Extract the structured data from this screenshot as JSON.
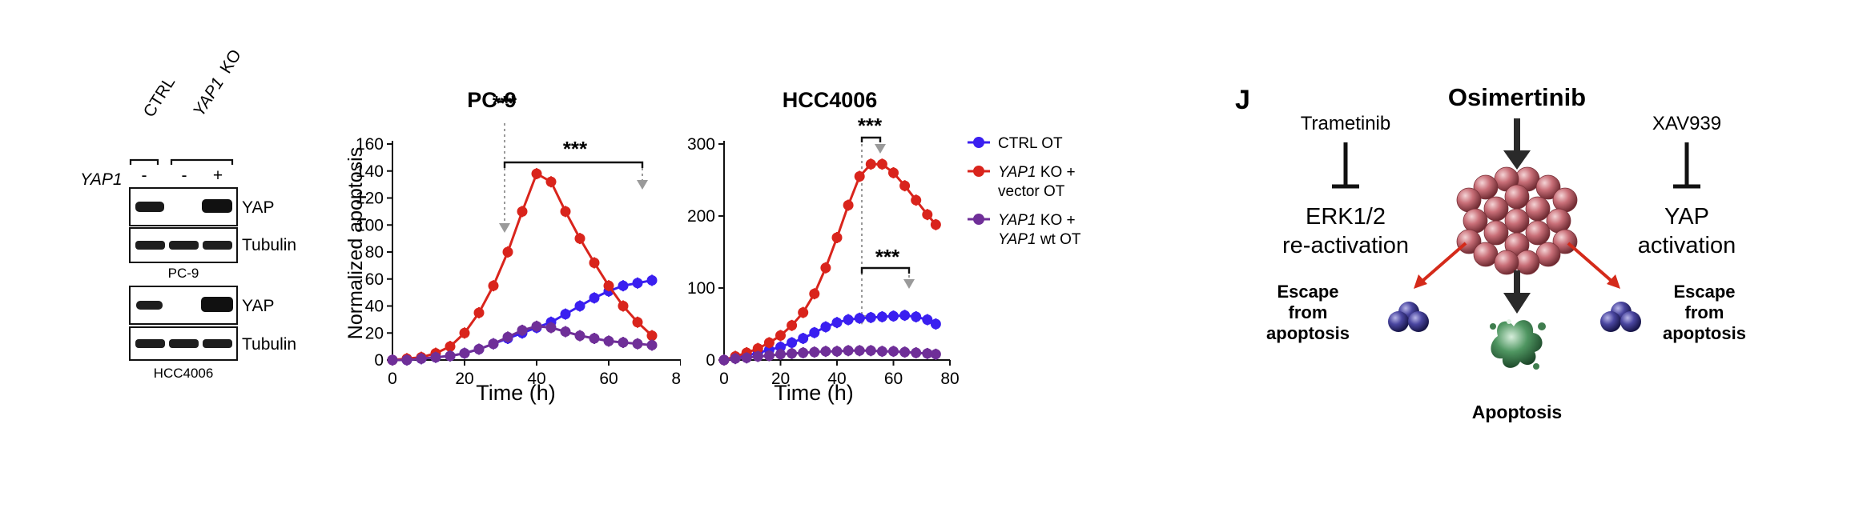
{
  "colors": {
    "ctrl": "#3a1ff0",
    "ko_vector": "#d9241c",
    "ko_wt": "#6f2f98",
    "arrow_red": "#d42a1a",
    "cell_fill": "#c96f78",
    "escape_cell": "#3e3b86",
    "apoptotic_cell": "#3f7d4e",
    "bracket_gray": "#9a9a9a"
  },
  "western_blot": {
    "column_headers": [
      "CTRL",
      "KO"
    ],
    "column_header_italic_prefix": "YAP1",
    "row_label": "YAP1",
    "lane_signs": [
      "-",
      "-",
      "+"
    ],
    "panels": [
      {
        "cell_line": "PC-9",
        "bands": [
          {
            "label": "YAP",
            "lane_intensity": [
              0.9,
              0.0,
              1.0
            ]
          },
          {
            "label": "Tubulin",
            "lane_intensity": [
              0.95,
              0.95,
              0.95
            ]
          }
        ]
      },
      {
        "cell_line": "HCC4006",
        "bands": [
          {
            "label": "YAP",
            "lane_intensity": [
              0.85,
              0.0,
              1.0
            ]
          },
          {
            "label": "Tubulin",
            "lane_intensity": [
              0.95,
              0.95,
              0.95
            ]
          }
        ]
      }
    ]
  },
  "chart_data": [
    {
      "type": "line",
      "title": "PC-9",
      "xlabel": "Time (h)",
      "ylabel": "Normalized apoptosis",
      "xlim": [
        0,
        80
      ],
      "ylim": [
        0,
        160
      ],
      "xticks": [
        0,
        20,
        40,
        60,
        80
      ],
      "yticks": [
        0,
        20,
        40,
        60,
        80,
        100,
        120,
        140,
        160
      ],
      "x": [
        0,
        4,
        8,
        12,
        16,
        20,
        24,
        28,
        32,
        36,
        40,
        44,
        48,
        52,
        56,
        60,
        64,
        68,
        72
      ],
      "series": [
        {
          "name": "CTRL OT",
          "color": "ctrl",
          "values": [
            0,
            0,
            1,
            2,
            3,
            5,
            8,
            12,
            16,
            20,
            24,
            28,
            34,
            40,
            46,
            51,
            55,
            57,
            59
          ]
        },
        {
          "name": "YAP1 KO + vector OT",
          "color": "ko_vector",
          "values": [
            0,
            1,
            2,
            5,
            10,
            20,
            35,
            55,
            80,
            110,
            138,
            132,
            110,
            90,
            72,
            55,
            40,
            28,
            18
          ]
        },
        {
          "name": "YAP1 KO + YAP1 wt OT",
          "color": "ko_wt",
          "values": [
            0,
            0,
            1,
            2,
            3,
            5,
            8,
            12,
            17,
            22,
            25,
            24,
            21,
            18,
            16,
            14,
            13,
            12,
            11
          ]
        }
      ],
      "annotations": [
        "***",
        "***"
      ]
    },
    {
      "type": "line",
      "title": "HCC4006",
      "xlabel": "Time (h)",
      "ylabel": "",
      "xlim": [
        0,
        80
      ],
      "ylim": [
        0,
        300
      ],
      "xticks": [
        0,
        20,
        40,
        60,
        80
      ],
      "yticks": [
        0,
        100,
        200,
        300
      ],
      "x": [
        0,
        4,
        8,
        12,
        16,
        20,
        24,
        28,
        32,
        36,
        40,
        44,
        48,
        52,
        56,
        60,
        64,
        68,
        72,
        75
      ],
      "series": [
        {
          "name": "CTRL OT",
          "color": "ctrl",
          "values": [
            0,
            3,
            6,
            10,
            14,
            18,
            24,
            30,
            38,
            46,
            52,
            56,
            58,
            59,
            60,
            61,
            62,
            60,
            56,
            50
          ]
        },
        {
          "name": "YAP1 KO + vector OT",
          "color": "ko_vector",
          "values": [
            0,
            5,
            10,
            16,
            24,
            34,
            48,
            66,
            92,
            128,
            170,
            215,
            255,
            272,
            272,
            260,
            242,
            222,
            202,
            188
          ]
        },
        {
          "name": "YAP1 KO + YAP1 wt OT",
          "color": "ko_wt",
          "values": [
            0,
            2,
            3,
            5,
            6,
            8,
            9,
            10,
            11,
            12,
            12,
            13,
            13,
            13,
            12,
            12,
            11,
            10,
            9,
            8
          ]
        }
      ],
      "annotations": [
        "***",
        "***"
      ]
    }
  ],
  "legend": {
    "entries": [
      {
        "series": "CTRL OT",
        "color": "ctrl",
        "lines": [
          "CTRL OT"
        ]
      },
      {
        "series": "YAP1 KO + vector OT",
        "color": "ko_vector",
        "lines": [
          "YAP1 KO +",
          "vector OT"
        ]
      },
      {
        "series": "YAP1 KO + YAP1 wt OT",
        "color": "ko_wt",
        "lines": [
          "YAP1 KO +",
          "YAP1 wt OT"
        ]
      }
    ]
  },
  "schematic": {
    "panel_letter": "J",
    "center_drug": "Osimertinib",
    "left_inhibitor": "Trametinib",
    "left_target_lines": [
      "ERK1/2",
      "re-activation"
    ],
    "right_inhibitor": "XAV939",
    "right_target_lines": [
      "YAP",
      "activation"
    ],
    "left_escape_lines": [
      "Escape",
      "from",
      "apoptosis"
    ],
    "right_escape_lines": [
      "Escape",
      "from",
      "apoptosis"
    ],
    "bottom_label": "Apoptosis"
  }
}
